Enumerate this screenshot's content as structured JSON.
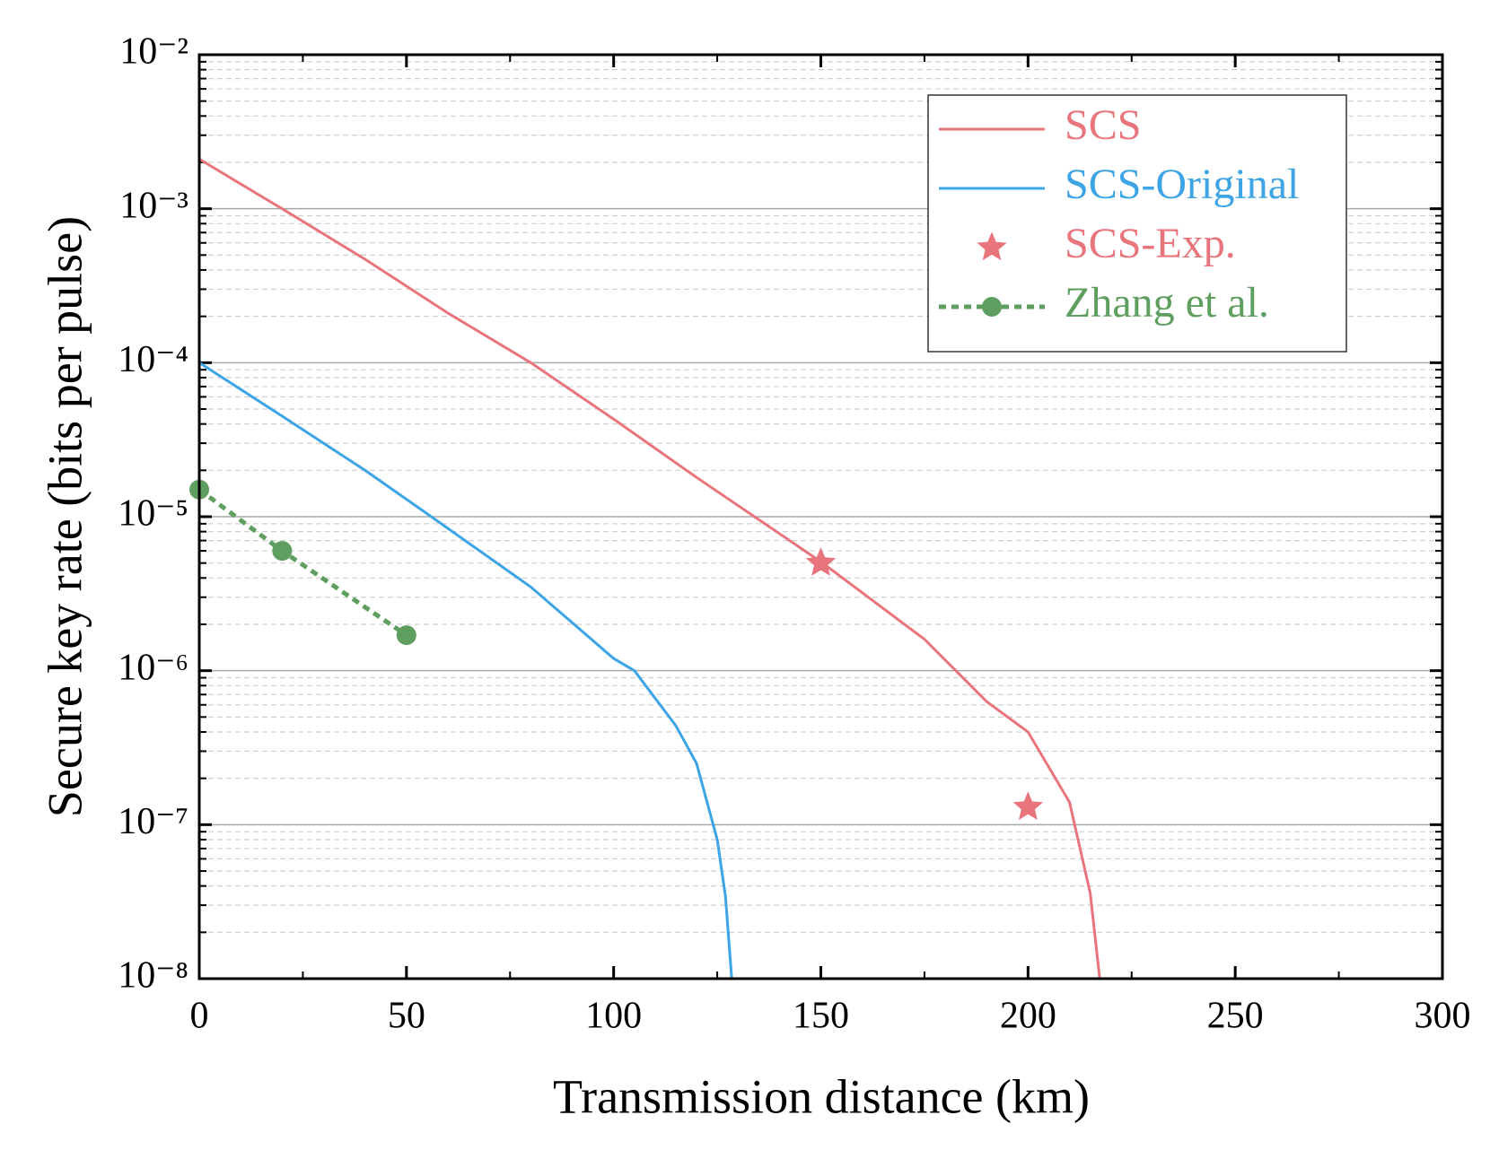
{
  "chart_data": {
    "type": "line",
    "x_label": "Transmission distance (km)",
    "y_label": "Secure key rate (bits per pulse)",
    "yscale": "log",
    "grid": true,
    "legend": "upper right",
    "xlim": [
      0,
      300
    ],
    "xticks": [
      0,
      50,
      100,
      150,
      200,
      250,
      300
    ],
    "ylim": [
      1e-08,
      0.01
    ],
    "yticks": [
      {
        "value": 1e-08,
        "label": "10⁻⁸"
      },
      {
        "value": 1e-07,
        "label": "10⁻⁷"
      },
      {
        "value": 1e-06,
        "label": "10⁻⁶"
      },
      {
        "value": 1e-05,
        "label": "10⁻⁵"
      },
      {
        "value": 0.0001,
        "label": "10⁻⁴"
      },
      {
        "value": 0.001,
        "label": "10⁻³"
      },
      {
        "value": 0.01,
        "label": "10⁻²"
      }
    ],
    "series": [
      {
        "name": "SCS",
        "color": "#e8747c",
        "line": true,
        "x": [
          0,
          20,
          40,
          60,
          80,
          100,
          120,
          150,
          175,
          190,
          200,
          210,
          215,
          217.3
        ],
        "values": [
          0.0021,
          0.001,
          0.00047,
          0.00021,
          0.0001,
          4.3e-05,
          1.8e-05,
          5.1e-06,
          1.6e-06,
          6.3e-07,
          4e-07,
          1.4e-07,
          3.6e-08,
          1e-08
        ]
      },
      {
        "name": "SCS-Original",
        "color": "#3da4e6",
        "line": true,
        "x": [
          0,
          20,
          40,
          56,
          80,
          100,
          105,
          115,
          120,
          125,
          127,
          128.5
        ],
        "values": [
          0.0001,
          4.5e-05,
          2e-05,
          1e-05,
          3.5e-06,
          1.2e-06,
          1e-06,
          4.4e-07,
          2.5e-07,
          8e-08,
          3.4e-08,
          1e-08
        ]
      },
      {
        "name": "SCS-Exp.",
        "color": "#e8747c",
        "line": false,
        "marker": "star",
        "x": [
          150,
          200
        ],
        "values": [
          5e-06,
          1.3e-07
        ]
      },
      {
        "name": "Zhang et al.",
        "color": "#5e9e5e",
        "line": true,
        "dashed": true,
        "marker": "circle",
        "x": [
          0,
          20,
          50
        ],
        "values": [
          1.5e-05,
          6e-06,
          1.7e-06
        ]
      }
    ]
  }
}
